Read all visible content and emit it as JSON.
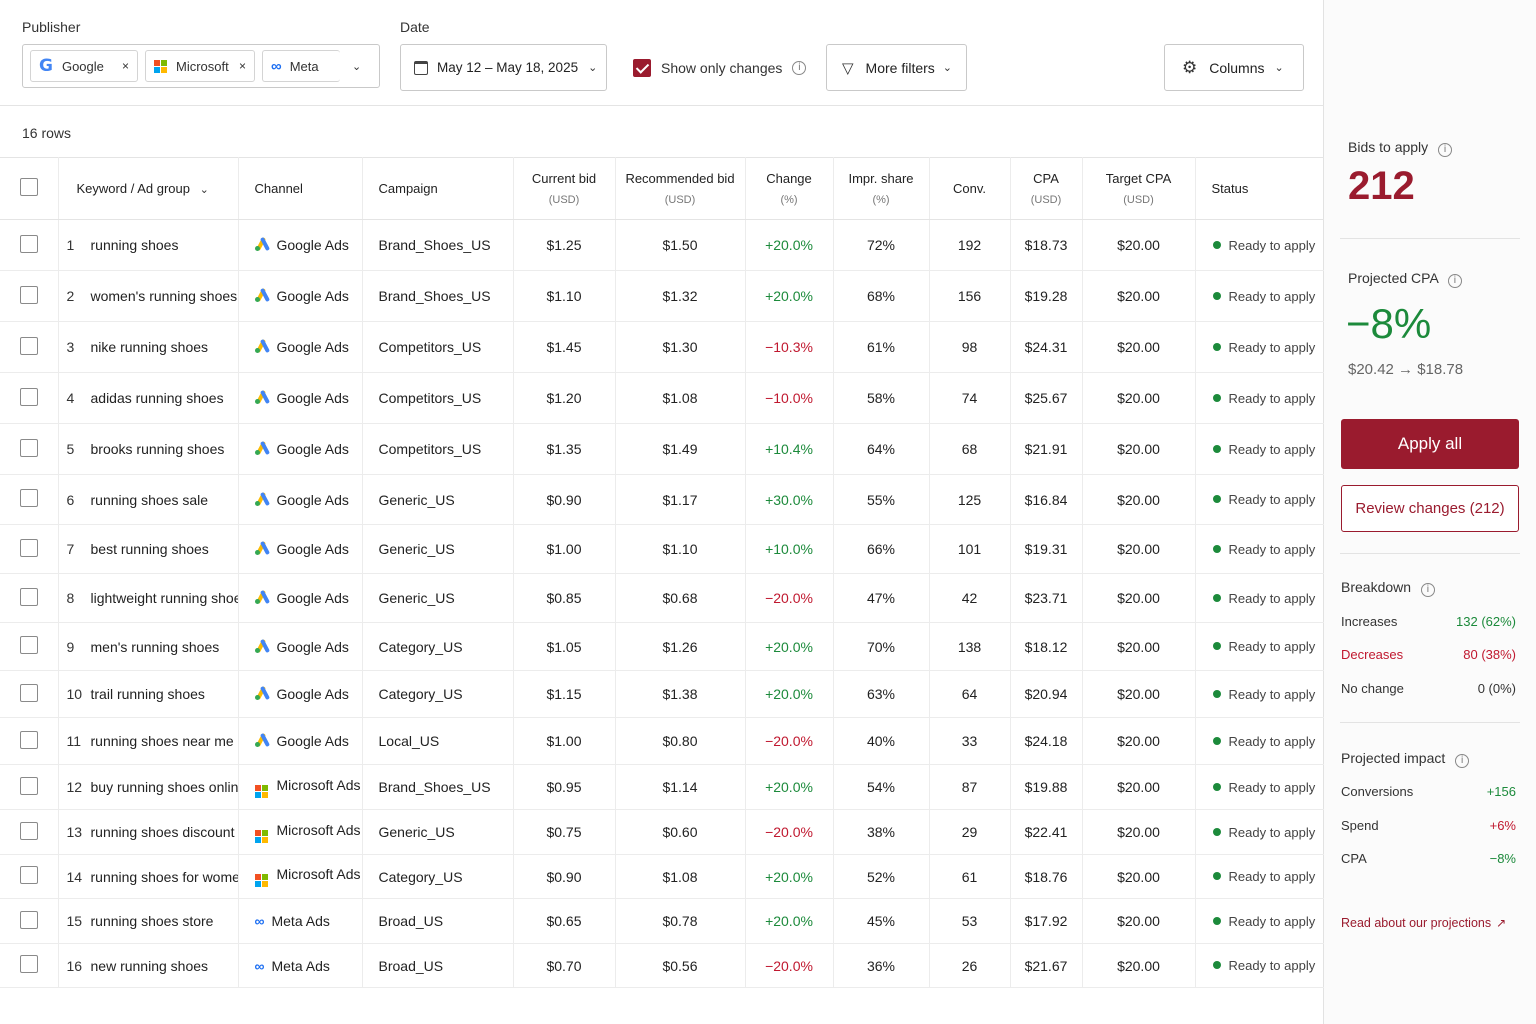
{
  "filters": {
    "publisher_label": "Publisher",
    "publishers": [
      {
        "name": "Google",
        "remove": "×"
      },
      {
        "name": "Microsoft",
        "remove": "×"
      },
      {
        "name": "Meta"
      }
    ],
    "date_label": "Date",
    "date_value": "May 12 – May 18, 2025",
    "show_only_changes_label": "Show only changes",
    "show_only_changes_checked": true,
    "more_filters_label": "More filters",
    "columns_label": "Columns"
  },
  "rows_count": "16 rows",
  "table": {
    "headers": {
      "keyword": "Keyword / Ad group",
      "channel": "Channel",
      "campaign": "Campaign",
      "current_bid": "Current bid",
      "current_bid_unit": "(USD)",
      "recommended_bid": "Recommended bid",
      "recommended_bid_unit": "(USD)",
      "change": "Change",
      "change_unit": "(%)",
      "impr_share": "Impr. share",
      "impr_share_unit": "(%)",
      "conv": "Conv.",
      "cpa": "CPA",
      "cpa_unit": "(USD)",
      "target_cpa": "Target CPA",
      "target_cpa_unit": "(USD)",
      "status": "Status"
    },
    "rows": [
      {
        "num": "1",
        "keyword": "running shoes",
        "channel": "Google Ads",
        "channel_icon": "google-ads",
        "campaign": "Brand_Shoes_US",
        "current_bid": "$1.25",
        "recommended_bid": "$1.50",
        "change": "+20.0%",
        "direction": "up",
        "impr_share": "72%",
        "conv": "192",
        "cpa": "$18.73",
        "target_cpa": "$20.00",
        "status": "Ready to apply"
      },
      {
        "num": "2",
        "keyword": "women's running shoes",
        "channel": "Google Ads",
        "channel_icon": "google-ads",
        "campaign": "Brand_Shoes_US",
        "current_bid": "$1.10",
        "recommended_bid": "$1.32",
        "change": "+20.0%",
        "direction": "up",
        "impr_share": "68%",
        "conv": "156",
        "cpa": "$19.28",
        "target_cpa": "$20.00",
        "status": "Ready to apply"
      },
      {
        "num": "3",
        "keyword": "nike running shoes",
        "channel": "Google Ads",
        "channel_icon": "google-ads",
        "campaign": "Competitors_US",
        "current_bid": "$1.45",
        "recommended_bid": "$1.30",
        "change": "−10.3%",
        "direction": "down",
        "impr_share": "61%",
        "conv": "98",
        "cpa": "$24.31",
        "target_cpa": "$20.00",
        "status": "Ready to apply"
      },
      {
        "num": "4",
        "keyword": "adidas running shoes",
        "channel": "Google Ads",
        "channel_icon": "google-ads",
        "campaign": "Competitors_US",
        "current_bid": "$1.20",
        "recommended_bid": "$1.08",
        "change": "−10.0%",
        "direction": "down",
        "impr_share": "58%",
        "conv": "74",
        "cpa": "$25.67",
        "target_cpa": "$20.00",
        "status": "Ready to apply"
      },
      {
        "num": "5",
        "keyword": "brooks running shoes",
        "channel": "Google Ads",
        "channel_icon": "google-ads",
        "campaign": "Competitors_US",
        "current_bid": "$1.35",
        "recommended_bid": "$1.49",
        "change": "+10.4%",
        "direction": "up",
        "impr_share": "64%",
        "conv": "68",
        "cpa": "$21.91",
        "target_cpa": "$20.00",
        "status": "Ready to apply"
      },
      {
        "num": "6",
        "keyword": "running shoes sale",
        "channel": "Google Ads",
        "channel_icon": "google-ads",
        "campaign": "Generic_US",
        "current_bid": "$0.90",
        "recommended_bid": "$1.17",
        "change": "+30.0%",
        "direction": "up",
        "impr_share": "55%",
        "conv": "125",
        "cpa": "$16.84",
        "target_cpa": "$20.00",
        "status": "Ready to apply"
      },
      {
        "num": "7",
        "keyword": "best running shoes",
        "channel": "Google Ads",
        "channel_icon": "google-ads",
        "campaign": "Generic_US",
        "current_bid": "$1.00",
        "recommended_bid": "$1.10",
        "change": "+10.0%",
        "direction": "up",
        "impr_share": "66%",
        "conv": "101",
        "cpa": "$19.31",
        "target_cpa": "$20.00",
        "status": "Ready to apply"
      },
      {
        "num": "8",
        "keyword": "lightweight running shoes",
        "channel": "Google Ads",
        "channel_icon": "google-ads",
        "campaign": "Generic_US",
        "current_bid": "$0.85",
        "recommended_bid": "$0.68",
        "change": "−20.0%",
        "direction": "down",
        "impr_share": "47%",
        "conv": "42",
        "cpa": "$23.71",
        "target_cpa": "$20.00",
        "status": "Ready to apply"
      },
      {
        "num": "9",
        "keyword": "men's running shoes",
        "channel": "Google Ads",
        "channel_icon": "google-ads",
        "campaign": "Category_US",
        "current_bid": "$1.05",
        "recommended_bid": "$1.26",
        "change": "+20.0%",
        "direction": "up",
        "impr_share": "70%",
        "conv": "138",
        "cpa": "$18.12",
        "target_cpa": "$20.00",
        "status": "Ready to apply"
      },
      {
        "num": "10",
        "keyword": "trail running shoes",
        "channel": "Google Ads",
        "channel_icon": "google-ads",
        "campaign": "Category_US",
        "current_bid": "$1.15",
        "recommended_bid": "$1.38",
        "change": "+20.0%",
        "direction": "up",
        "impr_share": "63%",
        "conv": "64",
        "cpa": "$20.94",
        "target_cpa": "$20.00",
        "status": "Ready to apply"
      },
      {
        "num": "11",
        "keyword": "running shoes near me",
        "channel": "Google Ads",
        "channel_icon": "google-ads",
        "campaign": "Local_US",
        "current_bid": "$1.00",
        "recommended_bid": "$0.80",
        "change": "−20.0%",
        "direction": "down",
        "impr_share": "40%",
        "conv": "33",
        "cpa": "$24.18",
        "target_cpa": "$20.00",
        "status": "Ready to apply"
      },
      {
        "num": "12",
        "keyword": "buy running shoes online",
        "channel": "Microsoft Ads",
        "channel_icon": "microsoft-ads",
        "campaign": "Brand_Shoes_US",
        "current_bid": "$0.95",
        "recommended_bid": "$1.14",
        "change": "+20.0%",
        "direction": "up",
        "impr_share": "54%",
        "conv": "87",
        "cpa": "$19.88",
        "target_cpa": "$20.00",
        "status": "Ready to apply"
      },
      {
        "num": "13",
        "keyword": "running shoes discount",
        "channel": "Microsoft Ads",
        "channel_icon": "microsoft-ads",
        "campaign": "Generic_US",
        "current_bid": "$0.75",
        "recommended_bid": "$0.60",
        "change": "−20.0%",
        "direction": "down",
        "impr_share": "38%",
        "conv": "29",
        "cpa": "$22.41",
        "target_cpa": "$20.00",
        "status": "Ready to apply"
      },
      {
        "num": "14",
        "keyword": "running shoes for women",
        "channel": "Microsoft Ads",
        "channel_icon": "microsoft-ads",
        "campaign": "Category_US",
        "current_bid": "$0.90",
        "recommended_bid": "$1.08",
        "change": "+20.0%",
        "direction": "up",
        "impr_share": "52%",
        "conv": "61",
        "cpa": "$18.76",
        "target_cpa": "$20.00",
        "status": "Ready to apply"
      },
      {
        "num": "15",
        "keyword": "running shoes store",
        "channel": "Meta Ads",
        "channel_icon": "meta-ads",
        "campaign": "Broad_US",
        "current_bid": "$0.65",
        "recommended_bid": "$0.78",
        "change": "+20.0%",
        "direction": "up",
        "impr_share": "45%",
        "conv": "53",
        "cpa": "$17.92",
        "target_cpa": "$20.00",
        "status": "Ready to apply"
      },
      {
        "num": "16",
        "keyword": "new running shoes",
        "channel": "Meta Ads",
        "channel_icon": "meta-ads",
        "campaign": "Broad_US",
        "current_bid": "$0.70",
        "recommended_bid": "$0.56",
        "change": "−20.0%",
        "direction": "down",
        "impr_share": "36%",
        "conv": "26",
        "cpa": "$21.67",
        "target_cpa": "$20.00",
        "status": "Ready to apply"
      }
    ]
  },
  "sidebar": {
    "bids_label": "Bids to apply",
    "bids_value": "212",
    "projected_cpa_label": "Projected CPA",
    "projected_cpa_value": "−8%",
    "projected_cpa_range": "$20.42 → $18.78",
    "apply_all": "Apply all",
    "review_changes": "Review changes (212)",
    "breakdown_label": "Breakdown",
    "breakdown": [
      {
        "label": "Increases",
        "value": "132 (62%)",
        "tone": "pos"
      },
      {
        "label": "Decreases",
        "value": "80 (38%)",
        "tone": "neg"
      },
      {
        "label": "No change",
        "value": "0 (0%)",
        "tone": "neutral"
      }
    ],
    "impact_label": "Projected impact",
    "impact": [
      {
        "label": "Conversions",
        "value": "+156",
        "tone": "pos"
      },
      {
        "label": "Spend",
        "value": "+6%",
        "tone": "neg"
      },
      {
        "label": "CPA",
        "value": "−8%",
        "tone": "pos"
      }
    ],
    "read_link": "Read about our projections"
  },
  "colors": {
    "accent": "#9a1b2e",
    "positive": "#1c8a3b",
    "negative": "#c0182f",
    "status_dot": "#1c8a3b"
  }
}
